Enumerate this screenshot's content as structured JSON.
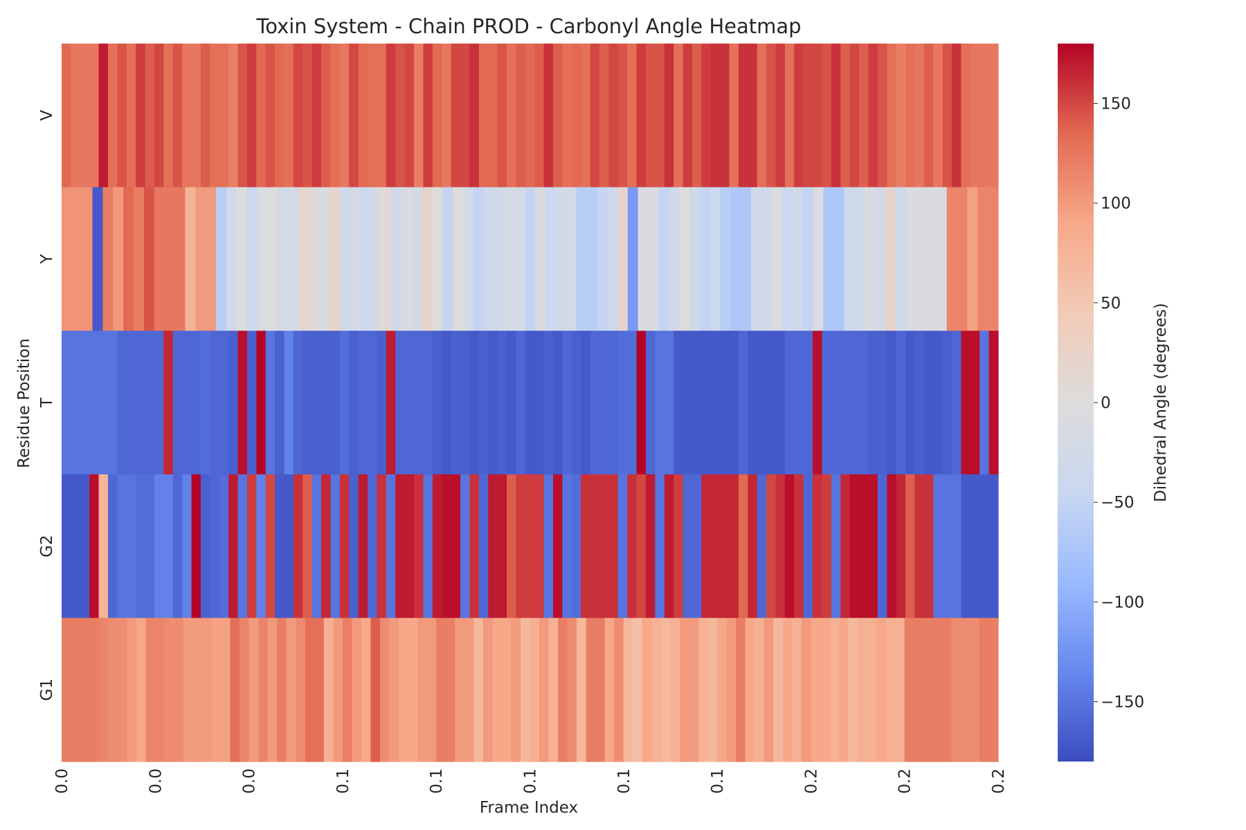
{
  "chart_data": {
    "type": "heatmap",
    "title": "Toxin System - Chain PROD - Carbonyl Angle Heatmap",
    "xlabel": "Frame Index",
    "ylabel": "Residue Position",
    "rows": [
      "V",
      "Y",
      "T",
      "G2",
      "G1"
    ],
    "x_tick_labels": [
      "0.0",
      "0.0",
      "0.0",
      "0.1",
      "0.1",
      "0.1",
      "0.1",
      "0.1",
      "0.2",
      "0.2",
      "0.2"
    ],
    "colorbar": {
      "label": "Dihedral Angle (degrees)",
      "range": [
        -180,
        180
      ],
      "ticks": [
        150,
        100,
        50,
        0,
        -50,
        -100,
        -150
      ],
      "tick_labels": [
        "150",
        "100",
        "50",
        "0",
        "−50",
        "−100",
        "−150"
      ],
      "colormap": "coolwarm",
      "colors": [
        "#3b4cc0",
        "#6788ee",
        "#9abbff",
        "#c9d7f0",
        "#dddcdc",
        "#f2cbb7",
        "#f7a889",
        "#e26952",
        "#b40426"
      ]
    },
    "values": [
      [
        135,
        125,
        125,
        125,
        170,
        130,
        145,
        130,
        155,
        140,
        150,
        130,
        145,
        125,
        125,
        140,
        130,
        130,
        120,
        145,
        155,
        135,
        145,
        135,
        130,
        150,
        145,
        155,
        140,
        130,
        125,
        150,
        135,
        130,
        130,
        155,
        145,
        150,
        120,
        155,
        135,
        125,
        150,
        150,
        160,
        135,
        135,
        145,
        130,
        140,
        135,
        140,
        160,
        140,
        130,
        135,
        130,
        150,
        140,
        150,
        145,
        130,
        155,
        145,
        145,
        160,
        130,
        155,
        140,
        155,
        160,
        160,
        130,
        160,
        160,
        130,
        145,
        155,
        130,
        155,
        150,
        150,
        145,
        160,
        140,
        150,
        140,
        155,
        145,
        130,
        120,
        130,
        125,
        140,
        125,
        145,
        160,
        130,
        125,
        125,
        125
      ],
      [
        105,
        105,
        105,
        -170,
        120,
        100,
        135,
        120,
        145,
        125,
        125,
        125,
        75,
        100,
        100,
        -60,
        -30,
        0,
        -40,
        -10,
        0,
        -20,
        -20,
        15,
        5,
        -10,
        20,
        -30,
        -20,
        -40,
        -20,
        10,
        -30,
        -10,
        -20,
        20,
        0,
        -50,
        0,
        -20,
        -50,
        -30,
        -30,
        -20,
        -20,
        -50,
        -10,
        -40,
        -30,
        -20,
        -60,
        -60,
        -50,
        -40,
        20,
        -120,
        -10,
        -10,
        -50,
        -30,
        0,
        -30,
        -50,
        -40,
        -60,
        -70,
        -70,
        -30,
        -30,
        -10,
        -40,
        -30,
        -50,
        -10,
        -70,
        -70,
        -40,
        -30,
        -10,
        -20,
        20,
        -30,
        -10,
        -10,
        -10,
        -10,
        115,
        115,
        95,
        115,
        115
      ],
      [
        -150,
        -150,
        -150,
        -150,
        -150,
        -150,
        -160,
        -160,
        -160,
        -160,
        -160,
        165,
        -160,
        -160,
        -160,
        -155,
        -160,
        -160,
        -165,
        175,
        -165,
        180,
        -150,
        -165,
        -140,
        -160,
        -165,
        -165,
        -165,
        -165,
        -155,
        -165,
        -160,
        -160,
        -165,
        170,
        -160,
        -160,
        -160,
        -160,
        -165,
        -170,
        -165,
        -165,
        -170,
        -165,
        -170,
        -165,
        -170,
        -160,
        -170,
        -170,
        -165,
        -170,
        -160,
        -165,
        -170,
        -160,
        -160,
        -160,
        -155,
        -155,
        180,
        -160,
        -150,
        -150,
        -170,
        -170,
        -170,
        -170,
        -170,
        -170,
        -170,
        -160,
        -170,
        -170,
        -170,
        -170,
        -160,
        -160,
        -160,
        175,
        -160,
        -160,
        -160,
        -160,
        -160,
        -165,
        -165,
        -170,
        -160,
        -170,
        -165,
        -170,
        -170,
        -165,
        -160,
        175,
        175,
        -150,
        175
      ],
      [
        -170,
        -170,
        -170,
        175,
        75,
        -160,
        -150,
        -150,
        -155,
        -155,
        -140,
        -140,
        -160,
        -140,
        180,
        -165,
        -160,
        -155,
        170,
        -150,
        155,
        -140,
        150,
        -170,
        -170,
        160,
        140,
        -150,
        165,
        -150,
        160,
        -165,
        170,
        -160,
        160,
        -150,
        170,
        170,
        160,
        -150,
        170,
        175,
        175,
        -150,
        160,
        -160,
        170,
        170,
        140,
        155,
        155,
        155,
        -150,
        175,
        -150,
        -155,
        160,
        160,
        160,
        160,
        -150,
        160,
        150,
        170,
        -150,
        170,
        155,
        -160,
        -160,
        165,
        165,
        165,
        165,
        135,
        165,
        -160,
        150,
        160,
        175,
        160,
        -160,
        160,
        155,
        -150,
        165,
        175,
        175,
        175,
        -160,
        175,
        165,
        140,
        160,
        160,
        -150,
        -150,
        -150,
        -170,
        -170,
        -170,
        -170
      ],
      [
        120,
        120,
        120,
        120,
        115,
        110,
        110,
        100,
        90,
        115,
        115,
        110,
        110,
        100,
        100,
        100,
        95,
        95,
        130,
        115,
        100,
        115,
        100,
        120,
        100,
        110,
        130,
        130,
        80,
        100,
        120,
        100,
        90,
        140,
        110,
        100,
        90,
        90,
        100,
        100,
        120,
        120,
        100,
        100,
        70,
        100,
        90,
        90,
        100,
        70,
        80,
        100,
        80,
        120,
        110,
        70,
        120,
        120,
        90,
        110,
        70,
        60,
        90,
        80,
        70,
        80,
        100,
        100,
        80,
        70,
        90,
        100,
        120,
        90,
        80,
        100,
        70,
        90,
        80,
        100,
        90,
        90,
        80,
        90,
        70,
        80,
        80,
        90,
        80,
        80,
        120,
        120,
        120,
        120,
        120,
        110,
        110,
        110,
        120,
        120
      ]
    ]
  }
}
